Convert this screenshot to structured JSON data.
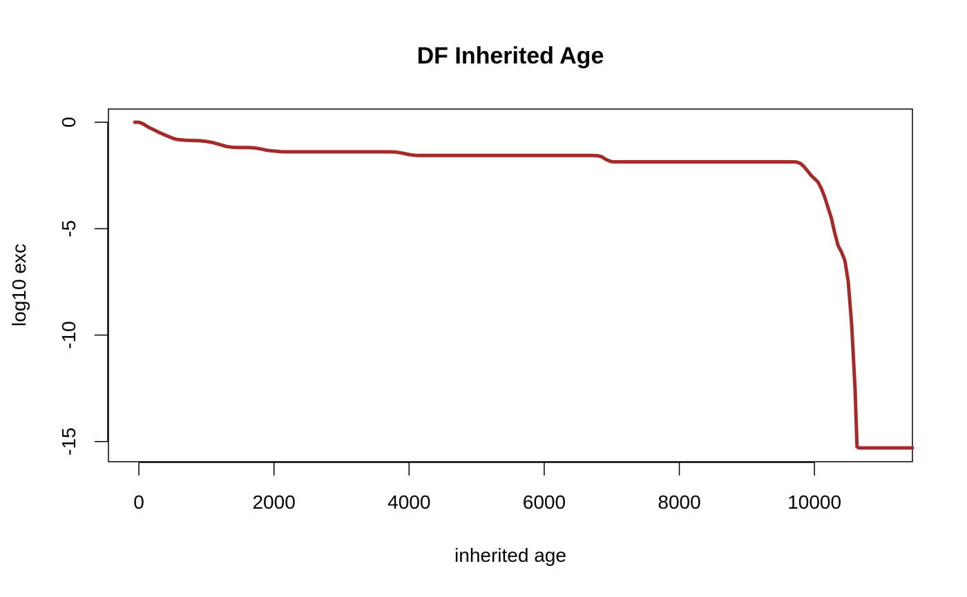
{
  "chart_data": {
    "type": "line",
    "title": "DF Inherited Age",
    "xlabel": "inherited age",
    "ylabel": "log10 exc",
    "xlim": [
      -450,
      11450
    ],
    "ylim": [
      -15.95,
      0.62
    ],
    "xticks": [
      0,
      2000,
      4000,
      6000,
      8000,
      10000
    ],
    "yticks": [
      0,
      -5,
      -10,
      -15
    ],
    "xtick_labels": [
      "0",
      "2000",
      "4000",
      "6000",
      "8000",
      "10000"
    ],
    "ytick_labels": [
      "0",
      "-5",
      "-10",
      "-15"
    ],
    "grid": false,
    "legend": "none",
    "line_color": "#a52a2a",
    "series": [
      {
        "x": [
          -60,
          0,
          50,
          100,
          150,
          200,
          300,
          400,
          500,
          550,
          600,
          700,
          800,
          900,
          1000,
          1100,
          1200,
          1300,
          1400,
          1500,
          1600,
          1700,
          1800,
          1900,
          2000,
          2100,
          2200,
          2500,
          3000,
          3500,
          3700,
          3800,
          3900,
          4000,
          4100,
          4200,
          4500,
          5000,
          5500,
          6000,
          6500,
          6700,
          6800,
          6850,
          6900,
          6950,
          7000,
          7050,
          7200,
          7500,
          8000,
          8500,
          9000,
          9500,
          9700,
          9750,
          9800,
          9850,
          9900,
          9950,
          10000,
          10050,
          10100,
          10150,
          10200,
          10250,
          10300,
          10350,
          10400,
          10450,
          10500,
          10550,
          10600,
          10630,
          10660,
          10680,
          10700,
          10720,
          10740,
          10760,
          10780,
          10800,
          11000,
          11200,
          11450
        ],
        "y": [
          0,
          0,
          -0.05,
          -0.15,
          -0.25,
          -0.32,
          -0.48,
          -0.62,
          -0.75,
          -0.8,
          -0.82,
          -0.85,
          -0.86,
          -0.87,
          -0.9,
          -0.96,
          -1.05,
          -1.14,
          -1.18,
          -1.19,
          -1.19,
          -1.2,
          -1.25,
          -1.32,
          -1.35,
          -1.38,
          -1.39,
          -1.39,
          -1.39,
          -1.39,
          -1.39,
          -1.4,
          -1.45,
          -1.52,
          -1.56,
          -1.56,
          -1.56,
          -1.56,
          -1.56,
          -1.56,
          -1.56,
          -1.56,
          -1.58,
          -1.62,
          -1.72,
          -1.8,
          -1.85,
          -1.86,
          -1.86,
          -1.86,
          -1.86,
          -1.86,
          -1.86,
          -1.86,
          -1.86,
          -1.88,
          -1.95,
          -2.1,
          -2.3,
          -2.5,
          -2.65,
          -2.8,
          -3.1,
          -3.5,
          -4.0,
          -4.5,
          -5.2,
          -5.8,
          -6.1,
          -6.5,
          -7.5,
          -9.5,
          -12.5,
          -15.25,
          -15.3,
          -15.3,
          -15.3,
          -15.3,
          -15.3,
          -15.3,
          -15.3,
          -15.3,
          -15.3,
          -15.3,
          -15.3
        ]
      }
    ]
  }
}
